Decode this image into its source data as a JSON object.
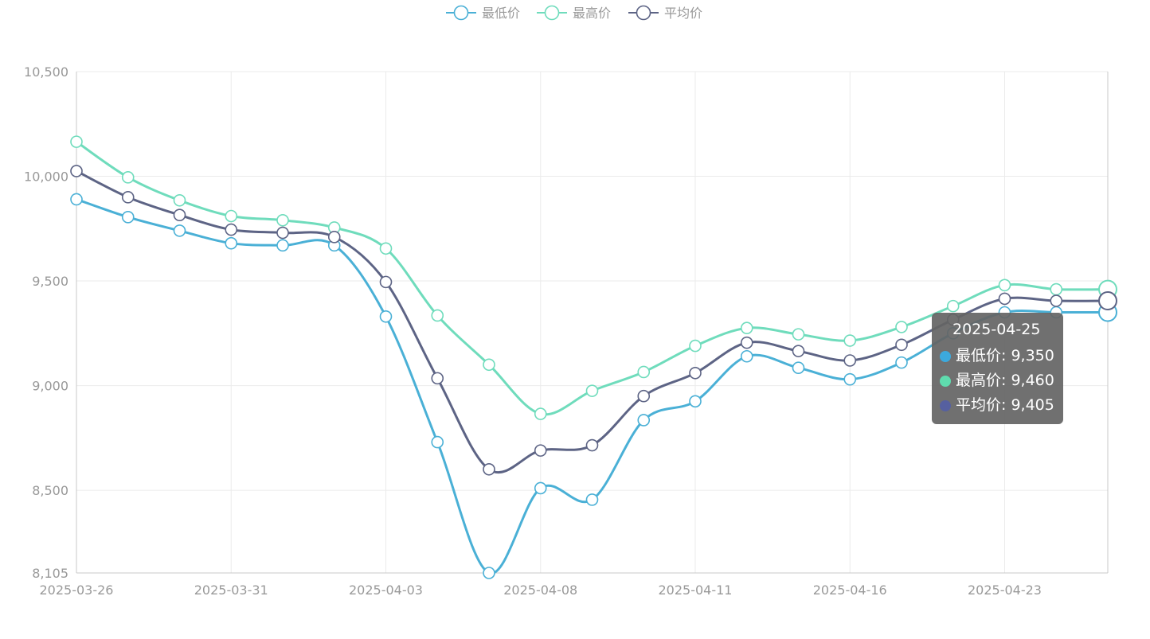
{
  "colors": {
    "series": [
      "#4ab0d6",
      "#6fdcbc",
      "#5d6485"
    ],
    "tooltip_dots": [
      "#3ca9dd",
      "#5fdcae",
      "#5660a0"
    ],
    "grid": "#ebebeb",
    "axis": "#c8c8c8",
    "label": "#999999",
    "legend_text": "#999999"
  },
  "tooltip": {
    "title": "2025-04-25",
    "rows": [
      {
        "label": "最低价: 9,350"
      },
      {
        "label": "最高价: 9,460"
      },
      {
        "label": "平均价: 9,405"
      }
    ]
  },
  "chart_data": {
    "type": "line",
    "smooth": true,
    "legend_position": "top-center",
    "grid": true,
    "ylim": [
      8105,
      10500
    ],
    "y_ticks": [
      8105,
      8500,
      9000,
      9500,
      10000,
      10500
    ],
    "y_tick_labels": [
      "8,105",
      "8,500",
      "9,000",
      "9,500",
      "10,000",
      "10,500"
    ],
    "x_tick_labels": [
      {
        "index": 0,
        "label": "2025-03-26"
      },
      {
        "index": 3,
        "label": "2025-03-31"
      },
      {
        "index": 6,
        "label": "2025-04-03"
      },
      {
        "index": 9,
        "label": "2025-04-08"
      },
      {
        "index": 12,
        "label": "2025-04-11"
      },
      {
        "index": 15,
        "label": "2025-04-16"
      },
      {
        "index": 18,
        "label": "2025-04-23"
      }
    ],
    "point_count": 21,
    "highlight_index": 20,
    "series": [
      {
        "name": "最低价",
        "values": [
          9890,
          9805,
          9740,
          9680,
          9670,
          9670,
          9330,
          8730,
          8105,
          8510,
          8455,
          8835,
          8925,
          9140,
          9085,
          9030,
          9110,
          9250,
          9350,
          9350,
          9350
        ]
      },
      {
        "name": "最高价",
        "values": [
          10165,
          9995,
          9885,
          9810,
          9790,
          9755,
          9655,
          9335,
          9100,
          8865,
          8975,
          9065,
          9190,
          9275,
          9245,
          9215,
          9280,
          9380,
          9480,
          9460,
          9460
        ]
      },
      {
        "name": "平均价",
        "values": [
          10025,
          9900,
          9815,
          9745,
          9730,
          9710,
          9495,
          9035,
          8600,
          8690,
          8715,
          8950,
          9060,
          9205,
          9165,
          9120,
          9195,
          9315,
          9415,
          9405,
          9405
        ]
      }
    ]
  }
}
